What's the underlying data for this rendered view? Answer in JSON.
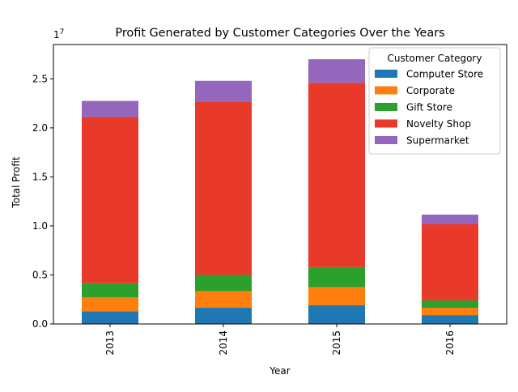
{
  "chart_data": {
    "type": "bar",
    "stacked": true,
    "title": "Profit Generated by Customer Categories Over the Years",
    "xlabel": "Year",
    "ylabel": "Total Profit",
    "y_offset_label": "1e7",
    "categories": [
      "2013",
      "2014",
      "2015",
      "2016"
    ],
    "ylim": [
      0,
      28500000
    ],
    "yticks": [
      0,
      5000000,
      10000000,
      15000000,
      20000000,
      25000000
    ],
    "ytick_labels": [
      "0.0",
      "0.5",
      "1.0",
      "1.5",
      "2.0",
      "2.5"
    ],
    "grid": false,
    "legend": {
      "title": "Customer Category",
      "placement": "top-right"
    },
    "series": [
      {
        "name": "Computer Store",
        "color": "#1f77b4",
        "values": [
          1300000,
          1650000,
          1900000,
          900000
        ]
      },
      {
        "name": "Corporate",
        "color": "#ff7f0e",
        "values": [
          1400000,
          1700000,
          1850000,
          750000
        ]
      },
      {
        "name": "Gift Store",
        "color": "#2ca02c",
        "values": [
          1450000,
          1650000,
          2050000,
          750000
        ]
      },
      {
        "name": "Novelty Shop",
        "color": "#e8392a",
        "values": [
          16950000,
          17700000,
          18800000,
          7800000
        ]
      },
      {
        "name": "Supermarket",
        "color": "#9467bd",
        "values": [
          1650000,
          2100000,
          2400000,
          950000
        ]
      }
    ]
  }
}
